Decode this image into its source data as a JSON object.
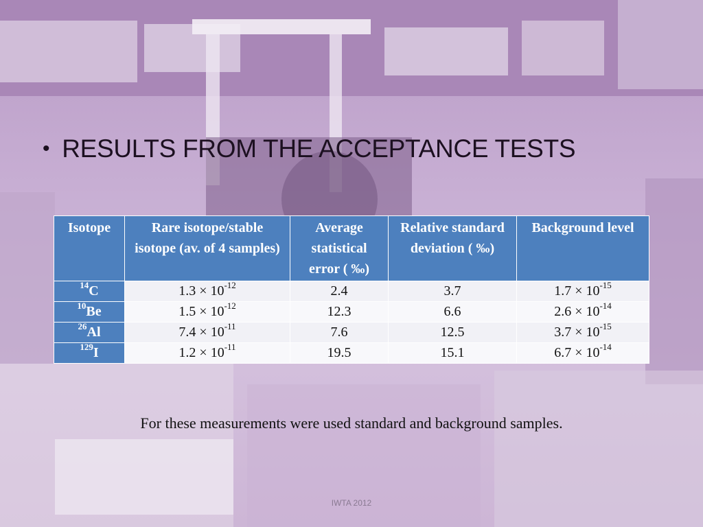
{
  "slide": {
    "title": "RESULTS FROM THE ACCEPTANCE TESTS",
    "bullet": "•",
    "note": "For these measurements were used standard and background samples.",
    "footer": "IWTA 2012"
  },
  "table": {
    "headers": [
      "Isotope",
      "Rare isotope/stable isotope (av. of 4 samples)",
      "Average statistical error ( ‰)",
      "Relative standard deviation ( ‰)",
      "Background level"
    ],
    "rows": [
      {
        "mass": "14",
        "element": "C",
        "ratio_base": "1.3 × 10",
        "ratio_exp": "-12",
        "error": "2.4",
        "rsd": "3.7",
        "bg_base": "1.7 × 10",
        "bg_exp": "-15"
      },
      {
        "mass": "10",
        "element": "Be",
        "ratio_base": "1.5 × 10",
        "ratio_exp": "-12",
        "error": "12.3",
        "rsd": "6.6",
        "bg_base": "2.6 × 10",
        "bg_exp": "-14"
      },
      {
        "mass": "26",
        "element": "Al",
        "ratio_base": "7.4 × 10",
        "ratio_exp": "-11",
        "error": "7.6",
        "rsd": "12.5",
        "bg_base": "3.7 × 10",
        "bg_exp": "-15"
      },
      {
        "mass": "129",
        "element": "I",
        "ratio_base": "1.2 × 10",
        "ratio_exp": "-11",
        "error": "19.5",
        "rsd": "15.1",
        "bg_base": "6.7 × 10",
        "bg_exp": "-14"
      }
    ]
  },
  "colors": {
    "header_bg": "#4d80be",
    "background_tint": "#c7aed3"
  }
}
